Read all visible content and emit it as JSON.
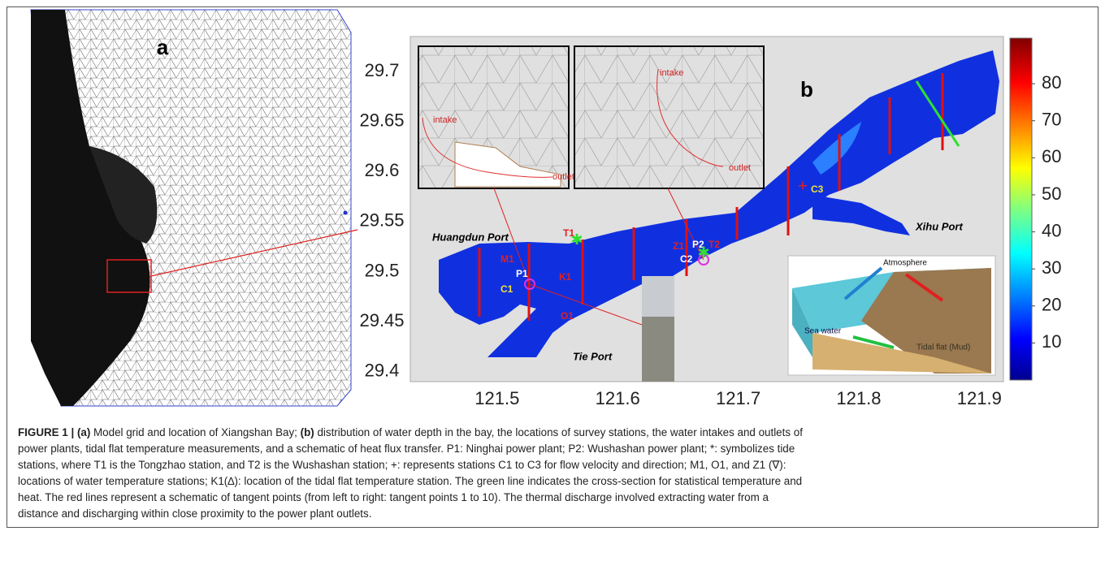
{
  "figure": {
    "panel_a": {
      "label": "a"
    },
    "panel_b": {
      "label": "b",
      "xlim": [
        121.428,
        121.92
      ],
      "ylim": [
        29.39,
        29.735
      ],
      "xticks": [
        121.5,
        121.6,
        121.7,
        121.8,
        121.9
      ],
      "yticks": [
        29.7,
        29.65,
        29.6,
        29.55,
        29.5,
        29.45,
        29.4
      ],
      "colorbar": {
        "lim": [
          0,
          92.3
        ],
        "ticks": [
          80,
          70,
          60,
          50,
          40,
          30,
          20,
          10
        ]
      },
      "places": [
        "Huangdun Port",
        "Tie Port",
        "Xihu Port"
      ],
      "stations": [
        "T1",
        "M1",
        "C1",
        "P1",
        "K1",
        "O1",
        "Z1",
        "C2",
        "P2",
        "T2",
        "C3"
      ],
      "inset_left": {
        "intake": "intake",
        "outlet": "outlet"
      },
      "inset_right": {
        "intake": "intake",
        "outlet": "outlet"
      },
      "schematic": {
        "atmosphere": "Atmosphere",
        "sea": "Sea water",
        "flat": "Tidal flat (Mud)"
      }
    },
    "caption": {
      "lines": [
        [
          {
            "text": "FIGURE 1 | (a)",
            "bold": true
          },
          {
            "text": " Model grid and location of Xiangshan Bay; "
          },
          {
            "text": "(b)",
            "bold": true
          },
          {
            "text": " distribution of water depth in the bay, the locations of survey stations, the water intakes and outlets of"
          }
        ],
        [
          {
            "text": "power plants, tidal flat temperature measurements, and a schematic of heat flux transfer. P1: Ninghai power plant; P2: Wushashan power plant; *: symbolizes tide"
          }
        ],
        [
          {
            "text": "stations, where T1 is the Tongzhao station, and T2 is the Wushashan station; +: represents stations C1 to C3 for flow velocity and direction; M1, O1, and Z1 (∇):"
          }
        ],
        [
          {
            "text": "locations of water temperature stations; K1(∆): location of the tidal flat temperature station. The green line indicates the cross-section for statistical temperature and"
          }
        ],
        [
          {
            "text": "heat. The red lines represent a schematic of tangent points (from left to right: tangent points 1 to 10). The thermal discharge involved extracting water from a"
          }
        ],
        [
          {
            "text": "distance and discharging within close proximity to the power plant outlets."
          }
        ]
      ]
    }
  }
}
